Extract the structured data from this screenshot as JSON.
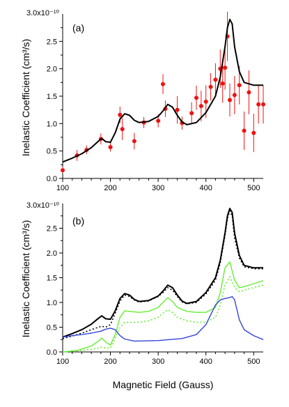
{
  "chart_data": [
    {
      "type": "scatter",
      "panel_label": "(a)",
      "ylabel": "Inelastic Coefficient (cm³/s)",
      "y_scale_label": "3.0x10⁻¹⁰",
      "xlim": [
        100,
        520
      ],
      "ylim": [
        0,
        3.0
      ],
      "x_ticks": [
        100,
        200,
        300,
        400,
        500
      ],
      "x_tick_labels": [
        "100",
        "200",
        "300",
        "400",
        "500"
      ],
      "y_ticks": [
        0,
        0.5,
        1.0,
        1.5,
        2.0,
        2.5
      ],
      "y_tick_labels": [
        "0.0",
        "0.5",
        "1.0",
        "1.5",
        "2.0",
        "2.5"
      ],
      "colors": {
        "points": "#ee1111",
        "fit": "#000000"
      },
      "series": [
        {
          "kind": "points_with_error",
          "x": [
            100,
            130,
            150,
            180,
            200,
            220,
            225,
            250,
            270,
            300,
            310,
            315,
            340,
            350,
            370,
            380,
            390,
            400,
            410,
            420,
            430,
            435,
            440,
            445,
            450,
            460,
            470,
            480,
            490,
            500,
            510,
            520
          ],
          "y": [
            0.15,
            0.42,
            0.52,
            0.72,
            0.57,
            1.16,
            0.9,
            0.68,
            1.02,
            1.05,
            1.72,
            1.27,
            1.25,
            1.01,
            1.19,
            1.47,
            1.32,
            1.4,
            1.67,
            1.8,
            2.0,
            1.73,
            2.02,
            2.59,
            1.43,
            1.52,
            1.7,
            0.87,
            1.57,
            0.83,
            1.35,
            1.35
          ],
          "yerr": [
            0.06,
            0.1,
            0.08,
            0.1,
            0.08,
            0.15,
            0.2,
            0.15,
            0.1,
            0.12,
            0.18,
            0.15,
            0.25,
            0.12,
            0.2,
            0.22,
            0.28,
            0.3,
            0.25,
            0.3,
            0.35,
            0.35,
            0.4,
            0.45,
            0.3,
            0.35,
            0.35,
            0.35,
            0.4,
            0.35,
            0.35,
            0.35
          ]
        },
        {
          "kind": "line",
          "x": [
            100,
            120,
            140,
            160,
            175,
            182,
            190,
            200,
            210,
            220,
            230,
            240,
            250,
            260,
            280,
            300,
            310,
            320,
            330,
            340,
            350,
            360,
            380,
            400,
            420,
            430,
            440,
            445,
            450,
            455,
            460,
            470,
            480,
            500,
            510,
            520
          ],
          "y": [
            0.3,
            0.37,
            0.45,
            0.56,
            0.68,
            0.73,
            0.67,
            0.66,
            0.83,
            1.08,
            1.18,
            1.15,
            1.06,
            1.02,
            1.04,
            1.13,
            1.23,
            1.35,
            1.3,
            1.15,
            1.03,
            0.98,
            1.02,
            1.2,
            1.5,
            1.85,
            2.4,
            2.75,
            2.9,
            2.82,
            2.4,
            1.95,
            1.75,
            1.7,
            1.7,
            1.7
          ]
        }
      ]
    },
    {
      "type": "line",
      "panel_label": "(b)",
      "xlabel": "Magnetic Field (Gauss)",
      "ylabel": "Inelastic Coefficient (cm³/s)",
      "y_scale_label": "3.0x10⁻¹⁰",
      "xlim": [
        100,
        520
      ],
      "ylim": [
        0,
        3.0
      ],
      "x_ticks": [
        100,
        200,
        300,
        400,
        500
      ],
      "x_tick_labels": [
        "100",
        "200",
        "300",
        "400",
        "500"
      ],
      "y_ticks": [
        0,
        0.5,
        1.0,
        1.5,
        2.0,
        2.5
      ],
      "y_tick_labels": [
        "0.0",
        "0.5",
        "1.0",
        "1.5",
        "2.0",
        "2.5"
      ],
      "series": [
        {
          "color": "#000000",
          "style": "solid",
          "x": [
            100,
            120,
            140,
            160,
            175,
            182,
            190,
            200,
            210,
            220,
            230,
            240,
            250,
            260,
            280,
            300,
            310,
            320,
            330,
            340,
            350,
            360,
            380,
            400,
            420,
            430,
            440,
            445,
            450,
            455,
            460,
            470,
            480,
            500,
            510,
            520
          ],
          "y": [
            0.3,
            0.37,
            0.45,
            0.56,
            0.68,
            0.73,
            0.67,
            0.66,
            0.83,
            1.08,
            1.18,
            1.15,
            1.06,
            1.02,
            1.04,
            1.13,
            1.23,
            1.35,
            1.3,
            1.15,
            1.03,
            0.98,
            1.02,
            1.2,
            1.5,
            1.85,
            2.4,
            2.75,
            2.9,
            2.82,
            2.4,
            1.95,
            1.75,
            1.7,
            1.7,
            1.7
          ]
        },
        {
          "color": "#000000",
          "style": "dotted",
          "x": [
            100,
            120,
            140,
            160,
            175,
            182,
            190,
            200,
            210,
            220,
            230,
            240,
            250,
            260,
            280,
            300,
            310,
            320,
            330,
            340,
            350,
            360,
            380,
            400,
            420,
            430,
            440,
            445,
            450,
            455,
            460,
            470,
            480,
            500,
            510,
            520
          ],
          "y": [
            0.27,
            0.32,
            0.38,
            0.45,
            0.5,
            0.52,
            0.5,
            0.55,
            0.78,
            1.03,
            1.15,
            1.12,
            1.05,
            1.01,
            1.03,
            1.12,
            1.2,
            1.3,
            1.25,
            1.12,
            1.01,
            0.97,
            1.0,
            1.17,
            1.45,
            1.8,
            2.35,
            2.7,
            2.85,
            2.75,
            2.3,
            1.9,
            1.72,
            1.68,
            1.68,
            1.68
          ]
        },
        {
          "color": "#66ee33",
          "style": "solid",
          "x": [
            100,
            130,
            160,
            175,
            182,
            190,
            200,
            210,
            220,
            230,
            240,
            260,
            280,
            300,
            310,
            320,
            330,
            340,
            360,
            380,
            400,
            420,
            430,
            440,
            450,
            460,
            470,
            480,
            500,
            520
          ],
          "y": [
            0.0,
            0.03,
            0.12,
            0.22,
            0.28,
            0.2,
            0.14,
            0.35,
            0.7,
            0.83,
            0.82,
            0.8,
            0.82,
            0.9,
            1.0,
            1.1,
            1.02,
            0.9,
            0.82,
            0.8,
            0.8,
            0.9,
            1.2,
            1.7,
            1.82,
            1.45,
            1.3,
            1.32,
            1.38,
            1.44
          ]
        },
        {
          "color": "#66ee33",
          "style": "dotted",
          "x": [
            100,
            130,
            160,
            175,
            182,
            190,
            200,
            210,
            220,
            230,
            240,
            260,
            280,
            300,
            310,
            320,
            330,
            340,
            360,
            380,
            400,
            420,
            430,
            440,
            450,
            460,
            470,
            480,
            500,
            520
          ],
          "y": [
            0.0,
            0.02,
            0.05,
            0.08,
            0.1,
            0.08,
            0.08,
            0.28,
            0.5,
            0.6,
            0.6,
            0.6,
            0.63,
            0.7,
            0.78,
            0.85,
            0.8,
            0.7,
            0.63,
            0.6,
            0.6,
            0.7,
            0.95,
            1.35,
            1.52,
            1.3,
            1.22,
            1.25,
            1.3,
            1.35
          ]
        },
        {
          "color": "#3344dd",
          "style": "solid",
          "x": [
            100,
            120,
            140,
            160,
            180,
            190,
            200,
            210,
            220,
            230,
            250,
            300,
            350,
            380,
            400,
            420,
            430,
            440,
            450,
            455,
            460,
            470,
            480,
            500,
            520
          ],
          "y": [
            0.3,
            0.33,
            0.35,
            0.38,
            0.42,
            0.46,
            0.48,
            0.45,
            0.33,
            0.26,
            0.22,
            0.23,
            0.27,
            0.35,
            0.55,
            0.95,
            1.05,
            1.08,
            1.1,
            1.12,
            1.05,
            0.65,
            0.45,
            0.33,
            0.25
          ]
        }
      ]
    }
  ]
}
